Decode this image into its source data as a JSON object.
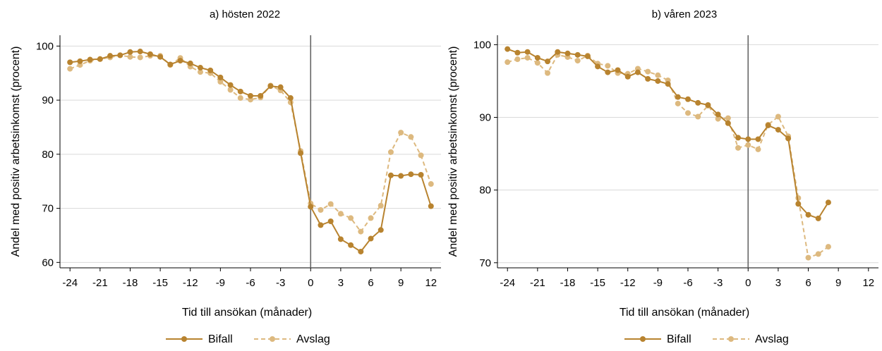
{
  "chart_data": [
    {
      "type": "line",
      "title": "a) hösten 2022",
      "xlabel": "Tid till ansökan (månader)",
      "ylabel": "Andel med positiv arbetsinkomst (procent)",
      "xlim": [
        -25,
        13
      ],
      "ylim": [
        59,
        102
      ],
      "xticks": [
        "-24",
        "-21",
        "-18",
        "-15",
        "-12",
        "-9",
        "-6",
        "-3",
        "0",
        "3",
        "6",
        "9",
        "12"
      ],
      "yticks": [
        "60",
        "70",
        "80",
        "90",
        "100"
      ],
      "grid": true,
      "reference_line_x": 0,
      "x": [
        -24,
        -23,
        -22,
        -21,
        -20,
        -19,
        -18,
        -17,
        -16,
        -15,
        -14,
        -13,
        -12,
        -11,
        -10,
        -9,
        -8,
        -7,
        -6,
        -5,
        -4,
        -3,
        -2,
        -1,
        0,
        1,
        2,
        3,
        4,
        5,
        6,
        7,
        8,
        9,
        10,
        11,
        12
      ],
      "series": [
        {
          "name": "Bifall",
          "style": "solid",
          "color": "#b8832f",
          "values": [
            97.0,
            97.2,
            97.5,
            97.6,
            98.2,
            98.3,
            98.9,
            99.0,
            98.5,
            98.0,
            96.6,
            97.3,
            96.8,
            96.0,
            95.5,
            94.2,
            92.8,
            91.6,
            90.8,
            90.8,
            92.6,
            92.4,
            90.4,
            80.2,
            70.3,
            66.9,
            67.6,
            64.3,
            63.2,
            62.0,
            64.4,
            66.0,
            76.1,
            76.0,
            76.3,
            76.2,
            70.4
          ]
        },
        {
          "name": "Avslag",
          "style": "dashed",
          "color": "#ddb97f",
          "values": [
            95.8,
            96.5,
            97.3,
            97.6,
            97.9,
            98.3,
            98.0,
            97.9,
            98.2,
            98.2,
            96.5,
            97.8,
            96.2,
            95.2,
            95.0,
            93.4,
            91.9,
            90.4,
            90.1,
            90.5,
            92.7,
            91.8,
            89.6,
            80.6,
            70.9,
            69.7,
            70.8,
            69.0,
            68.2,
            65.7,
            68.2,
            70.5,
            80.4,
            84.0,
            83.2,
            79.8,
            74.5
          ]
        }
      ]
    },
    {
      "type": "line",
      "title": "b) våren 2023",
      "xlabel": "Tid till ansökan (månader)",
      "ylabel": "Andel med positiv arbetsinkomst (procent)",
      "xlim": [
        -25,
        13
      ],
      "ylim": [
        69.3,
        101.3
      ],
      "xticks": [
        "-24",
        "-21",
        "-18",
        "-15",
        "-12",
        "-9",
        "-6",
        "-3",
        "0",
        "3",
        "6",
        "9",
        "12"
      ],
      "yticks": [
        "70",
        "80",
        "90",
        "100"
      ],
      "grid": true,
      "reference_line_x": 0,
      "x": [
        -24,
        -23,
        -22,
        -21,
        -20,
        -19,
        -18,
        -17,
        -16,
        -15,
        -14,
        -13,
        -12,
        -11,
        -10,
        -9,
        -8,
        -7,
        -6,
        -5,
        -4,
        -3,
        -2,
        -1,
        0,
        1,
        2,
        3,
        4,
        5,
        6,
        7,
        8
      ],
      "series": [
        {
          "name": "Bifall",
          "style": "solid",
          "color": "#b8832f",
          "values": [
            99.4,
            98.9,
            99.0,
            98.2,
            97.7,
            99.0,
            98.8,
            98.6,
            98.4,
            97.0,
            96.2,
            96.5,
            95.6,
            96.2,
            95.3,
            95.0,
            94.6,
            92.8,
            92.5,
            92.0,
            91.7,
            90.4,
            89.2,
            87.2,
            87.0,
            87.0,
            88.9,
            88.3,
            87.1,
            78.1,
            76.6,
            76.1,
            78.3
          ]
        },
        {
          "name": "Avslag",
          "style": "dashed",
          "color": "#ddb97f",
          "values": [
            97.6,
            98.0,
            98.2,
            97.5,
            96.1,
            98.6,
            98.3,
            97.8,
            98.5,
            97.4,
            97.1,
            96.1,
            96.0,
            96.7,
            96.3,
            95.8,
            95.1,
            91.9,
            90.6,
            90.1,
            91.6,
            89.8,
            89.9,
            85.8,
            86.2,
            85.6,
            89.0,
            90.1,
            87.4,
            78.9,
            70.7,
            71.2,
            72.2
          ]
        }
      ]
    }
  ]
}
